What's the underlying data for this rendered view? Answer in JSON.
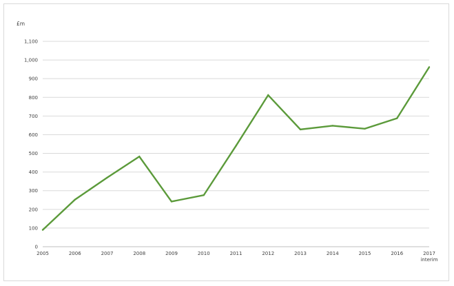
{
  "chart_data": {
    "type": "line",
    "ylabel": "£m",
    "x": [
      "2005",
      "2006",
      "2007",
      "2008",
      "2009",
      "2010",
      "2011",
      "2012",
      "2013",
      "2014",
      "2015",
      "2016",
      "2017"
    ],
    "x_sublabels": {
      "12": "interim"
    },
    "series": [
      {
        "values": [
          90,
          252,
          370,
          483,
          242,
          276,
          540,
          812,
          628,
          648,
          632,
          688,
          962
        ]
      }
    ],
    "ylim": [
      0,
      1100
    ],
    "yticks": [
      0,
      100,
      200,
      300,
      400,
      500,
      600,
      700,
      800,
      900,
      1000,
      1100
    ],
    "ytick_labels": [
      "0",
      "100",
      "200",
      "300",
      "400",
      "500",
      "600",
      "700",
      "800",
      "900",
      "1,000",
      "1,100"
    ],
    "grid": true,
    "legend": "none",
    "colors": {
      "line": "#5b9a3a",
      "grid": "#d9d9d9"
    }
  }
}
